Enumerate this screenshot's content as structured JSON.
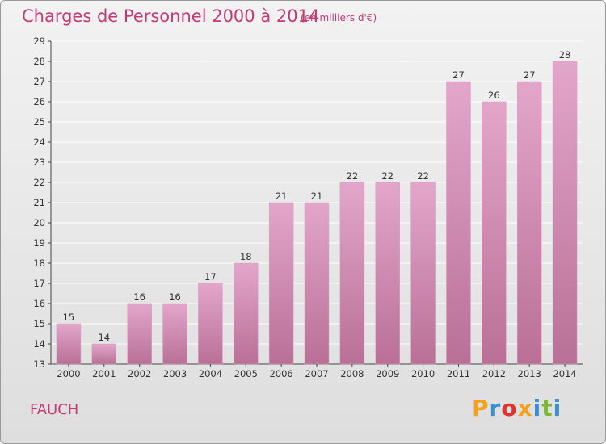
{
  "header": {
    "title": "Charges de Personnel 2000 à 2014",
    "subtitle": "(en milliers d'€)"
  },
  "footer": {
    "commune": "FAUCH",
    "brand": "Proxiti",
    "brand_colors": [
      "#f4a21c",
      "#3d8fd1",
      "#e2322b",
      "#f4a21c",
      "#3d8fd1",
      "#7cb82f",
      "#3d8fd1"
    ]
  },
  "colors": {
    "title": "#c43a72",
    "bar_light": "#e3a6cb",
    "bar_dark": "#b97096",
    "axis": "#444444",
    "grid": "#ffffff"
  },
  "chart_data": {
    "type": "bar",
    "title": "Charges de Personnel 2000 à 2014",
    "subtitle": "(en milliers d'€)",
    "categories": [
      "2000",
      "2001",
      "2002",
      "2003",
      "2004",
      "2005",
      "2006",
      "2007",
      "2008",
      "2009",
      "2010",
      "2011",
      "2012",
      "2013",
      "2014"
    ],
    "values": [
      15,
      14,
      16,
      16,
      17,
      18,
      21,
      21,
      22,
      22,
      22,
      27,
      26,
      27,
      28
    ],
    "ylim": [
      13,
      29
    ],
    "yticks": [
      13,
      14,
      15,
      16,
      17,
      18,
      19,
      20,
      21,
      22,
      23,
      24,
      25,
      26,
      27,
      28,
      29
    ],
    "grid": true,
    "data_labels": true
  }
}
